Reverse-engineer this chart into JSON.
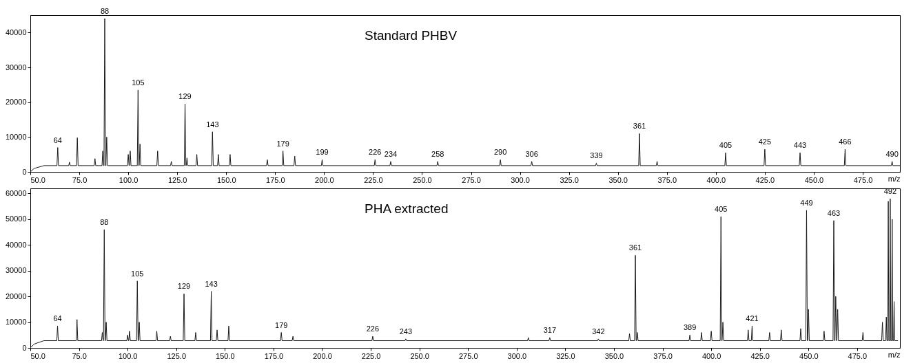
{
  "chart_data": [
    {
      "type": "line",
      "title": "Standard PHBV",
      "xlabel": "m/z",
      "xlim": [
        50,
        494
      ],
      "ylim": [
        0,
        45000
      ],
      "xticks": [
        {
          "value": 50,
          "label": "50.0"
        },
        {
          "value": 75,
          "label": "75.0"
        },
        {
          "value": 100,
          "label": "100.0"
        },
        {
          "value": 125,
          "label": "125.0"
        },
        {
          "value": 150,
          "label": "150.0"
        },
        {
          "value": 175,
          "label": "175.0"
        },
        {
          "value": 200,
          "label": "200.0"
        },
        {
          "value": 225,
          "label": "225.0"
        },
        {
          "value": 250,
          "label": "250.0"
        },
        {
          "value": 275,
          "label": "275.0"
        },
        {
          "value": 300,
          "label": "300.0"
        },
        {
          "value": 325,
          "label": "325.0"
        },
        {
          "value": 350,
          "label": "350.0"
        },
        {
          "value": 375,
          "label": "375.0"
        },
        {
          "value": 400,
          "label": "400.0"
        },
        {
          "value": 425,
          "label": "425.0"
        },
        {
          "value": 450,
          "label": "450.0"
        },
        {
          "value": 475,
          "label": "475.0"
        }
      ],
      "yticks": [
        0,
        10000,
        20000,
        30000,
        40000
      ],
      "marker": "none",
      "line_style": "solid",
      "series": [
        {
          "color": "#1a1a1a",
          "x": [
            50,
            52,
            57,
            63.6,
            64,
            64.4,
            69.6,
            70,
            70.4,
            73.6,
            74,
            74.4,
            82.6,
            83,
            83.4,
            86.6,
            87,
            87.4,
            87.6,
            88,
            88.4,
            88.6,
            89,
            89.4,
            99.6,
            100,
            100.4,
            100.6,
            101,
            101.4,
            104.6,
            105,
            105.4,
            105.6,
            106,
            106.4,
            114.6,
            115,
            115.4,
            121.6,
            122,
            122.4,
            128.6,
            129,
            129.4,
            129.6,
            130,
            130.4,
            134.6,
            135,
            135.4,
            142.6,
            143,
            143.4,
            145.6,
            146,
            146.4,
            151.6,
            152,
            152.4,
            170.6,
            171,
            171.4,
            178.6,
            179,
            179.4,
            184.6,
            185,
            185.4,
            198.6,
            199,
            199.4,
            225.6,
            226,
            226.4,
            233.6,
            234,
            234.4,
            257.6,
            258,
            258.4,
            289.6,
            290,
            290.4,
            305.6,
            306,
            306.4,
            338.6,
            339,
            339.4,
            360.6,
            361,
            361.4,
            369.6,
            370,
            370.4,
            404.6,
            405,
            405.4,
            424.6,
            425,
            425.4,
            442.6,
            443,
            443.4,
            465.6,
            466,
            466.4,
            489.6,
            490,
            490.4,
            494
          ],
          "values": [
            0,
            1000,
            1800,
            1800,
            7000,
            1800,
            1800,
            2800,
            1800,
            1800,
            9800,
            1800,
            1800,
            3800,
            1800,
            1800,
            6000,
            1800,
            1800,
            44000,
            1800,
            1800,
            10000,
            1800,
            1800,
            5000,
            1800,
            1800,
            6000,
            1800,
            1800,
            23500,
            1800,
            1800,
            8000,
            1800,
            1800,
            6000,
            1800,
            1800,
            3000,
            1800,
            1800,
            19500,
            1800,
            1800,
            4000,
            1800,
            1800,
            5000,
            1800,
            1800,
            11500,
            1800,
            1800,
            5000,
            1800,
            1800,
            5000,
            1800,
            1800,
            3500,
            1800,
            1800,
            6000,
            1800,
            1800,
            4500,
            1800,
            1800,
            3500,
            1800,
            1800,
            3500,
            1800,
            1800,
            3000,
            1800,
            1800,
            3000,
            1800,
            1800,
            3500,
            1800,
            1800,
            3000,
            1800,
            1800,
            2500,
            1800,
            1800,
            11000,
            1800,
            1800,
            3000,
            1800,
            1800,
            5500,
            1800,
            1800,
            6500,
            1800,
            1800,
            5500,
            1800,
            1800,
            6500,
            1800,
            1800,
            3000,
            1800,
            1800
          ]
        }
      ],
      "annotations": [
        {
          "text": "64",
          "x": 64,
          "y": 7000
        },
        {
          "text": "88",
          "x": 88,
          "y": 44000
        },
        {
          "text": "105",
          "x": 105,
          "y": 23500
        },
        {
          "text": "129",
          "x": 129,
          "y": 19500
        },
        {
          "text": "143",
          "x": 143,
          "y": 11500
        },
        {
          "text": "179",
          "x": 179,
          "y": 6000
        },
        {
          "text": "199",
          "x": 199,
          "y": 3500
        },
        {
          "text": "226",
          "x": 226,
          "y": 3500
        },
        {
          "text": "234",
          "x": 234,
          "y": 3000
        },
        {
          "text": "258",
          "x": 258,
          "y": 3000
        },
        {
          "text": "290",
          "x": 290,
          "y": 3500
        },
        {
          "text": "306",
          "x": 306,
          "y": 3000
        },
        {
          "text": "339",
          "x": 339,
          "y": 2500
        },
        {
          "text": "361",
          "x": 361,
          "y": 11000
        },
        {
          "text": "405",
          "x": 405,
          "y": 5500
        },
        {
          "text": "425",
          "x": 425,
          "y": 6500
        },
        {
          "text": "443",
          "x": 443,
          "y": 5500
        },
        {
          "text": "466",
          "x": 466,
          "y": 6500
        },
        {
          "text": "490",
          "x": 490,
          "y": 3000
        }
      ]
    },
    {
      "type": "line",
      "title": "PHA extracted",
      "xlabel": "m/z",
      "xlim": [
        50,
        497
      ],
      "ylim": [
        0,
        62000
      ],
      "xticks": [
        {
          "value": 50,
          "label": "50.0"
        },
        {
          "value": 75,
          "label": "75.0"
        },
        {
          "value": 100,
          "label": "100.0"
        },
        {
          "value": 125,
          "label": "125.0"
        },
        {
          "value": 150,
          "label": "150.0"
        },
        {
          "value": 175,
          "label": "175.0"
        },
        {
          "value": 200,
          "label": "200.0"
        },
        {
          "value": 225,
          "label": "225.0"
        },
        {
          "value": 250,
          "label": "250.0"
        },
        {
          "value": 275,
          "label": "275.0"
        },
        {
          "value": 300,
          "label": "300.0"
        },
        {
          "value": 325,
          "label": "325.0"
        },
        {
          "value": 350,
          "label": "350.0"
        },
        {
          "value": 375,
          "label": "375.0"
        },
        {
          "value": 400,
          "label": "400.0"
        },
        {
          "value": 425,
          "label": "425.0"
        },
        {
          "value": 450,
          "label": "450.0"
        },
        {
          "value": 475,
          "label": "475.0"
        }
      ],
      "yticks": [
        0,
        10000,
        20000,
        30000,
        40000,
        50000,
        60000
      ],
      "marker": "none",
      "line_style": "solid",
      "series": [
        {
          "color": "#1a1a1a",
          "x": [
            50,
            52,
            57,
            63.6,
            64,
            64.4,
            73.6,
            74,
            74.4,
            86.6,
            87,
            87.4,
            87.6,
            88,
            88.4,
            88.6,
            89,
            89.4,
            99.6,
            100,
            100.4,
            100.6,
            101,
            101.4,
            104.6,
            105,
            105.4,
            105.6,
            106,
            106.4,
            114.6,
            115,
            115.4,
            121.6,
            122,
            122.4,
            128.6,
            129,
            129.4,
            134.6,
            135,
            135.4,
            142.6,
            143,
            143.4,
            145.6,
            146,
            146.4,
            151.6,
            152,
            152.4,
            178.6,
            179,
            179.4,
            184.6,
            185,
            185.4,
            225.6,
            226,
            226.4,
            242.6,
            243,
            243.4,
            305.6,
            306,
            306.4,
            316.6,
            317,
            317.4,
            341.6,
            342,
            342.4,
            357.6,
            358,
            358.4,
            360.6,
            361,
            361.4,
            361.6,
            362,
            362.4,
            388.6,
            389,
            389.4,
            394.6,
            395,
            395.4,
            399.6,
            400,
            400.4,
            404.6,
            405,
            405.4,
            405.6,
            406,
            406.4,
            418.6,
            419,
            419.4,
            420.6,
            421,
            421.4,
            429.6,
            430,
            430.4,
            435.6,
            436,
            436.4,
            445.6,
            446,
            446.4,
            448.6,
            449,
            449.4,
            449.6,
            450,
            450.4,
            457.6,
            458,
            458.4,
            462.6,
            463,
            463.4,
            463.6,
            464,
            464.4,
            464.6,
            465,
            465.4,
            477.6,
            478,
            478.4,
            487.6,
            488,
            488.4,
            489.6,
            490,
            490.3,
            490.7,
            491,
            491.3,
            491.7,
            492,
            492.3,
            492.7,
            493,
            493.3,
            493.7,
            494,
            494.3,
            496
          ],
          "values": [
            0,
            1500,
            2800,
            2800,
            8500,
            2800,
            2800,
            11000,
            2800,
            2800,
            6000,
            2800,
            2800,
            46000,
            2800,
            2800,
            10000,
            2800,
            2800,
            5000,
            2800,
            2800,
            6500,
            2800,
            2800,
            26000,
            2800,
            2800,
            10000,
            2800,
            2800,
            6500,
            2800,
            2800,
            4500,
            2800,
            2800,
            21000,
            2800,
            2800,
            6000,
            2800,
            2800,
            22000,
            2800,
            2800,
            7000,
            2800,
            2800,
            8500,
            2800,
            2800,
            6000,
            2800,
            2800,
            4500,
            2800,
            2800,
            4500,
            2800,
            2800,
            3500,
            2800,
            2800,
            4000,
            2800,
            2800,
            4000,
            2800,
            2800,
            3500,
            2800,
            2800,
            5500,
            2800,
            2800,
            36000,
            2800,
            2800,
            6000,
            2800,
            2800,
            5000,
            2800,
            2800,
            6000,
            2800,
            2800,
            6500,
            2800,
            2800,
            51000,
            2800,
            2800,
            10000,
            2800,
            2800,
            7000,
            2800,
            2800,
            8500,
            2800,
            2800,
            6000,
            2800,
            2800,
            7000,
            2800,
            2800,
            7500,
            2800,
            2800,
            53500,
            2800,
            2800,
            15000,
            2800,
            2800,
            6500,
            2800,
            2800,
            49500,
            2800,
            2800,
            20000,
            2800,
            2800,
            15000,
            2800,
            2800,
            6000,
            2800,
            2800,
            10000,
            2800,
            2800,
            12000,
            2800,
            2800,
            57000,
            2800,
            2800,
            58000,
            2800,
            2800,
            50000,
            2800,
            2800,
            18000,
            2800,
            2800
          ]
        }
      ],
      "annotations": [
        {
          "text": "64",
          "x": 64,
          "y": 8500
        },
        {
          "text": "88",
          "x": 88,
          "y": 46000
        },
        {
          "text": "105",
          "x": 105,
          "y": 26000
        },
        {
          "text": "129",
          "x": 129,
          "y": 21000
        },
        {
          "text": "143",
          "x": 143,
          "y": 22000
        },
        {
          "text": "179",
          "x": 179,
          "y": 6000
        },
        {
          "text": "226",
          "x": 226,
          "y": 4500
        },
        {
          "text": "243",
          "x": 243,
          "y": 3500
        },
        {
          "text": "317",
          "x": 317,
          "y": 4000
        },
        {
          "text": "342",
          "x": 342,
          "y": 3500
        },
        {
          "text": "361",
          "x": 361,
          "y": 36000
        },
        {
          "text": "389",
          "x": 389,
          "y": 5000
        },
        {
          "text": "405",
          "x": 405,
          "y": 51000
        },
        {
          "text": "421",
          "x": 421,
          "y": 8500
        },
        {
          "text": "449",
          "x": 449,
          "y": 53500
        },
        {
          "text": "463",
          "x": 463,
          "y": 49500
        },
        {
          "text": "492",
          "x": 492,
          "y": 58000
        }
      ]
    }
  ]
}
